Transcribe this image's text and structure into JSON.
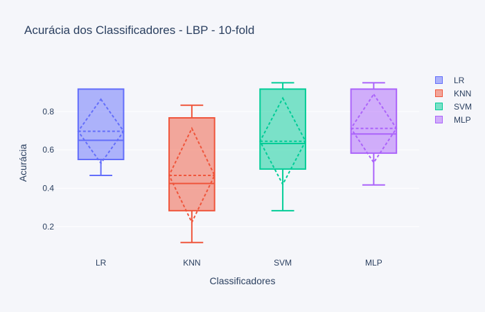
{
  "chart_data": {
    "type": "box",
    "title": "Acurácia dos Classificadores - LBP - 10-fold",
    "xlabel": "Classificadores",
    "ylabel": "Acurácia",
    "ylim": [
      0.08,
      1.02
    ],
    "yticks": [
      0.2,
      0.4,
      0.6,
      0.8
    ],
    "ytick_labels": [
      "0.2",
      "0.4",
      "0.6",
      "0.8"
    ],
    "grid": true,
    "legend_position": "top-right",
    "categories": [
      "LR",
      "KNN",
      "SVM",
      "MLP"
    ],
    "series": [
      {
        "name": "LR",
        "color": "#636efa",
        "lower_fence": 0.467,
        "q1": 0.55,
        "median": 0.65,
        "q3": 0.917,
        "upper_fence": 0.917,
        "mean": 0.697,
        "sd": 0.167
      },
      {
        "name": "KNN",
        "color": "#ef553b",
        "lower_fence": 0.117,
        "q1": 0.283,
        "median": 0.425,
        "q3": 0.767,
        "upper_fence": 0.833,
        "mean": 0.467,
        "sd": 0.245
      },
      {
        "name": "SVM",
        "color": "#00cc96",
        "lower_fence": 0.283,
        "q1": 0.5,
        "median": 0.633,
        "q3": 0.917,
        "upper_fence": 0.95,
        "mean": 0.645,
        "sd": 0.225
      },
      {
        "name": "MLP",
        "color": "#ab63fa",
        "lower_fence": 0.417,
        "q1": 0.583,
        "median": 0.683,
        "q3": 0.917,
        "upper_fence": 0.95,
        "mean": 0.712,
        "sd": 0.178
      }
    ]
  }
}
